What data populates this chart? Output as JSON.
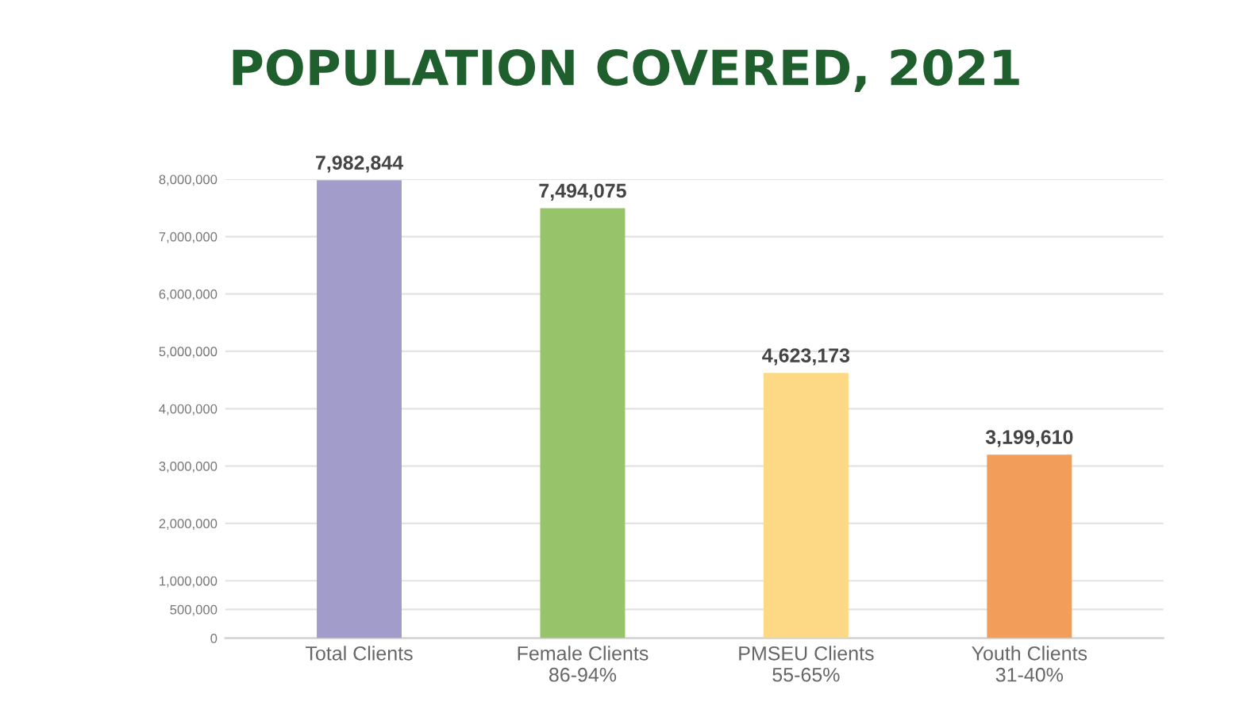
{
  "chart_data": {
    "type": "bar",
    "title": "POPULATION COVERED, 2021",
    "categories": [
      "Total Clients",
      "Female Clients\n86-94%",
      "PMSEU Clients\n55-65%",
      "Youth Clients\n31-40%"
    ],
    "values": [
      7982844,
      7494075,
      4623173,
      3199610
    ],
    "colors": [
      "#a19cc9",
      "#97c46b",
      "#fdd885",
      "#f29d5a"
    ],
    "value_labels": [
      "7,982,844",
      "7,494,075",
      "4,623,173",
      "3,199,610"
    ],
    "ylim": [
      0,
      8000000
    ],
    "yticks": [
      {
        "value": 0,
        "label": "0"
      },
      {
        "value": 500000,
        "label": "500,000"
      },
      {
        "value": 1000000,
        "label": "1,000,000"
      },
      {
        "value": 2000000,
        "label": "2,000,000"
      },
      {
        "value": 3000000,
        "label": "3,000,000"
      },
      {
        "value": 4000000,
        "label": "4,000,000"
      },
      {
        "value": 5000000,
        "label": "5,000,000"
      },
      {
        "value": 6000000,
        "label": "6,000,000"
      },
      {
        "value": 7000000,
        "label": "7,000,000"
      },
      {
        "value": 8000000,
        "label": "8,000,000"
      }
    ],
    "grid": "y",
    "legend": false
  }
}
